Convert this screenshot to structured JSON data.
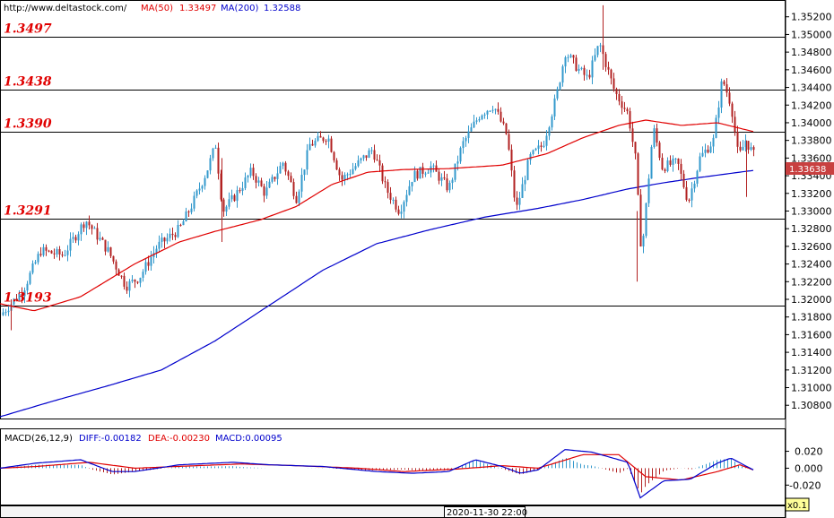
{
  "header": {
    "url": "http://www.deltastock.com/",
    "ma50_label": "MA(50)",
    "ma50_value": "1.33497",
    "ma200_label": "MA(200)",
    "ma200_value": "1.32588",
    "ma50_color": "#e00000",
    "ma200_color": "#0000cc"
  },
  "macd_header": {
    "label": "MACD(26,12,9)",
    "diff": "DIFF:-0.00182",
    "dea": "DEA:-0.00230",
    "macd": "MACD:0.00095"
  },
  "footer": {
    "date": "2020-11-30 22:00",
    "zoom": "x0.1"
  },
  "chart_data": {
    "type": "candlestick",
    "last_price": "1.33638",
    "levels": [
      {
        "label": "1.3497",
        "value": 1.3497
      },
      {
        "label": "1.3438",
        "value": 1.3438
      },
      {
        "label": "1.3390",
        "value": 1.339
      },
      {
        "label": "1.3291",
        "value": 1.3291
      },
      {
        "label": "1.3193",
        "value": 1.3193
      }
    ],
    "price_ticks": [
      "1.35200",
      "1.35000",
      "1.34800",
      "1.34600",
      "1.34400",
      "1.34200",
      "1.34000",
      "1.33800",
      "1.33600",
      "1.33400",
      "1.33200",
      "1.33000",
      "1.32800",
      "1.32600",
      "1.32400",
      "1.32200",
      "1.32000",
      "1.31800",
      "1.31600",
      "1.31400",
      "1.31200",
      "1.31000",
      "1.30800"
    ],
    "price_range": [
      1.3065,
      1.3538
    ],
    "macd_ticks": [
      "0.020",
      "0.000",
      "-0.020"
    ],
    "macd_range": [
      -0.043,
      0.028
    ],
    "ma50_anchors": [
      [
        0,
        1.3195
      ],
      [
        38,
        1.3187
      ],
      [
        90,
        1.3203
      ],
      [
        150,
        1.324
      ],
      [
        200,
        1.3265
      ],
      [
        240,
        1.3277
      ],
      [
        290,
        1.329
      ],
      [
        330,
        1.3305
      ],
      [
        370,
        1.333
      ],
      [
        410,
        1.3344
      ],
      [
        450,
        1.3347
      ],
      [
        500,
        1.3348
      ],
      [
        560,
        1.3352
      ],
      [
        610,
        1.3365
      ],
      [
        650,
        1.3383
      ],
      [
        690,
        1.3397
      ],
      [
        720,
        1.3403
      ],
      [
        760,
        1.3397
      ],
      [
        800,
        1.34
      ],
      [
        840,
        1.339
      ]
    ],
    "ma200_anchors": [
      [
        0,
        1.3067
      ],
      [
        60,
        1.3085
      ],
      [
        120,
        1.3102
      ],
      [
        180,
        1.312
      ],
      [
        240,
        1.3153
      ],
      [
        300,
        1.3193
      ],
      [
        360,
        1.3233
      ],
      [
        420,
        1.3263
      ],
      [
        480,
        1.3279
      ],
      [
        540,
        1.3293
      ],
      [
        600,
        1.3303
      ],
      [
        650,
        1.3313
      ],
      [
        700,
        1.3325
      ],
      [
        740,
        1.3332
      ],
      [
        780,
        1.3338
      ],
      [
        840,
        1.3346
      ]
    ],
    "close_anchors": [
      [
        0,
        1.3182
      ],
      [
        25,
        1.321
      ],
      [
        45,
        1.3255
      ],
      [
        70,
        1.325
      ],
      [
        95,
        1.329
      ],
      [
        120,
        1.3255
      ],
      [
        140,
        1.3215
      ],
      [
        155,
        1.3225
      ],
      [
        175,
        1.326
      ],
      [
        200,
        1.328
      ],
      [
        215,
        1.331
      ],
      [
        230,
        1.3345
      ],
      [
        240,
        1.3375
      ],
      [
        248,
        1.33
      ],
      [
        260,
        1.3315
      ],
      [
        280,
        1.3345
      ],
      [
        295,
        1.332
      ],
      [
        315,
        1.3355
      ],
      [
        330,
        1.3315
      ],
      [
        345,
        1.3375
      ],
      [
        365,
        1.3385
      ],
      [
        380,
        1.3335
      ],
      [
        395,
        1.335
      ],
      [
        415,
        1.337
      ],
      [
        430,
        1.3325
      ],
      [
        445,
        1.33
      ],
      [
        460,
        1.334
      ],
      [
        480,
        1.335
      ],
      [
        500,
        1.3325
      ],
      [
        515,
        1.3375
      ],
      [
        535,
        1.341
      ],
      [
        550,
        1.342
      ],
      [
        565,
        1.3385
      ],
      [
        575,
        1.33
      ],
      [
        590,
        1.336
      ],
      [
        605,
        1.3375
      ],
      [
        620,
        1.343
      ],
      [
        630,
        1.348
      ],
      [
        645,
        1.346
      ],
      [
        655,
        1.345
      ],
      [
        668,
        1.349
      ],
      [
        685,
        1.3435
      ],
      [
        700,
        1.341
      ],
      [
        708,
        1.336
      ],
      [
        715,
        1.325
      ],
      [
        728,
        1.3395
      ],
      [
        738,
        1.335
      ],
      [
        755,
        1.3355
      ],
      [
        767,
        1.331
      ],
      [
        780,
        1.336
      ],
      [
        795,
        1.338
      ],
      [
        805,
        1.345
      ],
      [
        815,
        1.342
      ],
      [
        823,
        1.336
      ],
      [
        831,
        1.338
      ],
      [
        840,
        1.33638
      ]
    ],
    "macd_diff_anchors": [
      [
        0,
        0.0
      ],
      [
        40,
        0.006
      ],
      [
        90,
        0.01
      ],
      [
        125,
        -0.004
      ],
      [
        150,
        -0.004
      ],
      [
        200,
        0.004
      ],
      [
        260,
        0.007
      ],
      [
        300,
        0.004
      ],
      [
        360,
        0.002
      ],
      [
        420,
        -0.004
      ],
      [
        460,
        -0.006
      ],
      [
        500,
        -0.004
      ],
      [
        530,
        0.01
      ],
      [
        560,
        0.002
      ],
      [
        580,
        -0.006
      ],
      [
        600,
        -0.002
      ],
      [
        630,
        0.022
      ],
      [
        660,
        0.019
      ],
      [
        700,
        0.007
      ],
      [
        714,
        -0.035
      ],
      [
        740,
        -0.015
      ],
      [
        770,
        -0.013
      ],
      [
        800,
        0.006
      ],
      [
        815,
        0.012
      ],
      [
        840,
        -0.002
      ]
    ],
    "macd_dea_anchors": [
      [
        0,
        0.0
      ],
      [
        40,
        0.002
      ],
      [
        100,
        0.007
      ],
      [
        150,
        0.0
      ],
      [
        220,
        0.003
      ],
      [
        270,
        0.005
      ],
      [
        330,
        0.003
      ],
      [
        400,
        0.0
      ],
      [
        450,
        -0.004
      ],
      [
        510,
        -0.001
      ],
      [
        560,
        0.003
      ],
      [
        600,
        0.0
      ],
      [
        650,
        0.016
      ],
      [
        690,
        0.016
      ],
      [
        720,
        -0.01
      ],
      [
        760,
        -0.014
      ],
      [
        800,
        -0.004
      ],
      [
        825,
        0.004
      ],
      [
        840,
        -0.002
      ]
    ]
  }
}
